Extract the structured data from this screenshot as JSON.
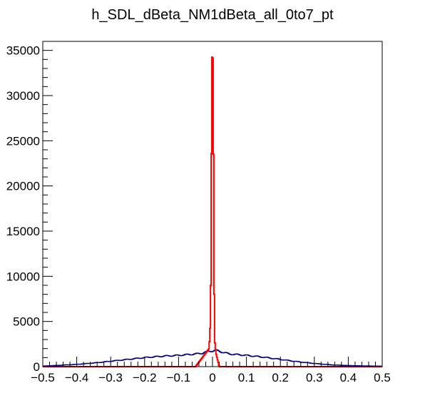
{
  "chart_data": {
    "type": "line",
    "title": "h_SDL_dBeta_NM1dBeta_all_0to7_pt",
    "xlabel": "",
    "ylabel": "",
    "xlim": [
      -0.5,
      0.5
    ],
    "ylim": [
      0,
      36000
    ],
    "grid": false,
    "legend": "none",
    "x_ticks": [
      {
        "value": -0.5,
        "label": "−0.5"
      },
      {
        "value": -0.4,
        "label": "−0.4"
      },
      {
        "value": -0.3,
        "label": "−0.3"
      },
      {
        "value": -0.2,
        "label": "−0.2"
      },
      {
        "value": -0.1,
        "label": "−0.1"
      },
      {
        "value": 0,
        "label": "0"
      },
      {
        "value": 0.1,
        "label": "0.1"
      },
      {
        "value": 0.2,
        "label": "0.2"
      },
      {
        "value": 0.3,
        "label": "0.3"
      },
      {
        "value": 0.4,
        "label": "0.4"
      },
      {
        "value": 0.5,
        "label": "0.5"
      }
    ],
    "y_ticks": [
      {
        "value": 0,
        "label": "0"
      },
      {
        "value": 5000,
        "label": "5000"
      },
      {
        "value": 10000,
        "label": "10000"
      },
      {
        "value": 15000,
        "label": "15000"
      },
      {
        "value": 20000,
        "label": "20000"
      },
      {
        "value": 25000,
        "label": "25000"
      },
      {
        "value": 30000,
        "label": "30000"
      },
      {
        "value": 35000,
        "label": "35000"
      }
    ],
    "series": [
      {
        "color": "#000080",
        "x": [
          -0.5,
          -0.45,
          -0.4,
          -0.35,
          -0.3,
          -0.25,
          -0.2,
          -0.15,
          -0.1,
          -0.05,
          -0.03,
          -0.02,
          -0.01,
          0,
          0.01,
          0.02,
          0.03,
          0.05,
          0.1,
          0.15,
          0.2,
          0.25,
          0.3,
          0.35,
          0.4,
          0.45,
          0.5
        ],
        "y": [
          60,
          150,
          250,
          400,
          600,
          800,
          1000,
          1150,
          1250,
          1400,
          1500,
          1600,
          1700,
          1750,
          1800,
          1700,
          1600,
          1400,
          1250,
          1050,
          800,
          550,
          350,
          200,
          120,
          80,
          50
        ]
      },
      {
        "color": "#ff0000",
        "x": [
          -0.5,
          -0.05,
          -0.02,
          -0.01,
          -0.006,
          -0.004,
          -0.002,
          0,
          0.002,
          0.004,
          0.006,
          0.01,
          0.02,
          0.05,
          0.5
        ],
        "y": [
          0,
          0,
          1500,
          2000,
          5000,
          13000,
          34200,
          34300,
          34000,
          13000,
          3000,
          1500,
          0,
          0,
          0
        ]
      }
    ]
  }
}
